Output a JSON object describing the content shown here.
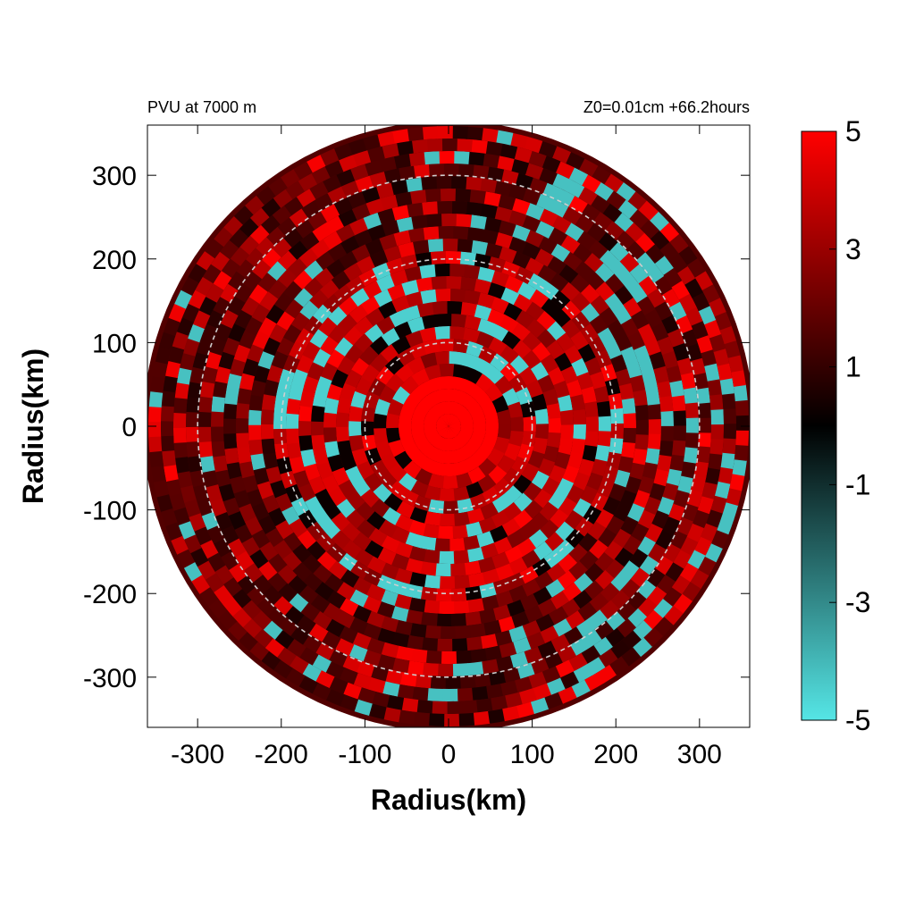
{
  "chart_data": {
    "type": "heatmap",
    "title_left": "PVU at  7000 m",
    "title_right": "Z0=0.01cm  +66.2hours",
    "xlabel": "Radius(km)",
    "ylabel": "Radius(km)",
    "xlim": [
      -360,
      360
    ],
    "ylim": [
      -360,
      360
    ],
    "x_ticks": [
      -300,
      -200,
      -100,
      0,
      100,
      200,
      300
    ],
    "y_ticks": [
      -300,
      -200,
      -100,
      0,
      100,
      200,
      300
    ],
    "x_tick_labels": [
      "-300",
      "-200",
      "-100",
      "0",
      "100",
      "200",
      "300"
    ],
    "y_tick_labels": [
      "-300",
      "-200",
      "-100",
      "0",
      "100",
      "200",
      "300"
    ],
    "domain_radius_km": 365,
    "reference_circles_km": [
      100,
      200,
      300
    ],
    "reference_circle_style": "dashed light gray",
    "grid": false,
    "colorbar": {
      "range": [
        -5,
        5
      ],
      "ticks": [
        5,
        3,
        1,
        -1,
        -3,
        -5
      ],
      "tick_labels": [
        "5",
        "3",
        "1",
        "-1",
        "-3",
        "-5"
      ],
      "colors": [
        {
          "value": -5,
          "color": "#55e6e6"
        },
        {
          "value": 0,
          "color": "#000000"
        },
        {
          "value": 5,
          "color": "#ff0000"
        }
      ]
    },
    "field_description_regions": [
      {
        "region": "core",
        "radius_km": [
          0,
          60
        ],
        "value": 5
      },
      {
        "region": "inner ring",
        "radius_km": [
          60,
          200
        ],
        "value_range": [
          -5,
          5
        ],
        "dominant": "positive"
      },
      {
        "region": "outer ring",
        "radius_km": [
          200,
          365
        ],
        "value_range": [
          -5,
          4
        ],
        "dominant": "dark red"
      }
    ]
  }
}
